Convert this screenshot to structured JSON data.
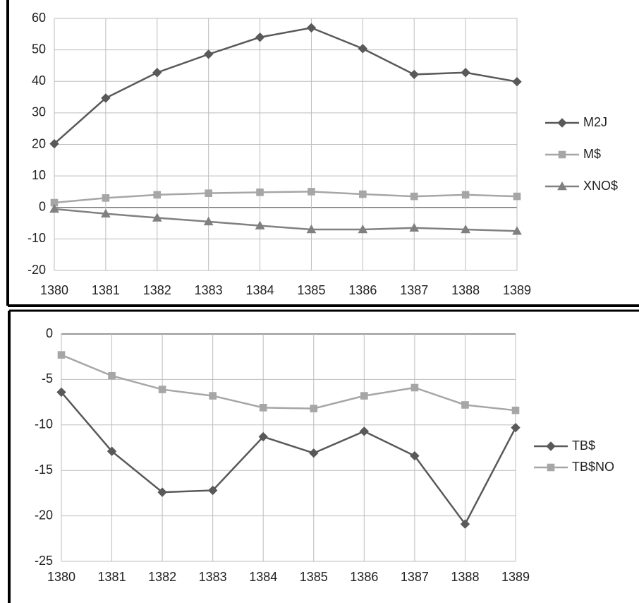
{
  "chart_data": [
    {
      "type": "line",
      "categories": [
        "1380",
        "1381",
        "1382",
        "1383",
        "1384",
        "1385",
        "1386",
        "1387",
        "1388",
        "1389"
      ],
      "ylim": [
        -20,
        60
      ],
      "yticks": [
        -20,
        -10,
        0,
        10,
        20,
        30,
        40,
        50,
        60
      ],
      "grid": true,
      "legend": "right",
      "series": [
        {
          "name": "M2J",
          "color": "#595959",
          "marker": "diamond",
          "values": [
            20.2,
            34.7,
            42.8,
            48.6,
            54,
            57,
            50.4,
            42.2,
            42.8,
            39.9
          ]
        },
        {
          "name": "M$",
          "color": "#a6a6a6",
          "marker": "square",
          "values": [
            1.5,
            3,
            4,
            4.5,
            4.8,
            5,
            4.2,
            3.5,
            4,
            3.5
          ]
        },
        {
          "name": "XNO$",
          "color": "#808080",
          "marker": "triangle",
          "values": [
            -0.5,
            -2,
            -3.3,
            -4.5,
            -5.8,
            -7,
            -7,
            -6.5,
            -7,
            -7.5
          ]
        }
      ]
    },
    {
      "type": "line",
      "categories": [
        "1380",
        "1381",
        "1382",
        "1383",
        "1384",
        "1385",
        "1386",
        "1387",
        "1388",
        "1389"
      ],
      "ylim": [
        -25,
        0
      ],
      "yticks": [
        -25,
        -20,
        -15,
        -10,
        -5,
        0
      ],
      "grid": true,
      "legend": "right",
      "series": [
        {
          "name": "TB$",
          "color": "#595959",
          "marker": "diamond",
          "values": [
            -6.4,
            -12.9,
            -17.4,
            -17.2,
            -11.3,
            -13.1,
            -10.7,
            -13.4,
            -20.9,
            -10.3
          ]
        },
        {
          "name": "TB$NO",
          "color": "#a6a6a6",
          "marker": "square",
          "values": [
            -2.3,
            -4.6,
            -6.1,
            -6.8,
            -8.1,
            -8.2,
            -6.8,
            -5.9,
            -7.8,
            -8.4
          ]
        }
      ]
    }
  ]
}
